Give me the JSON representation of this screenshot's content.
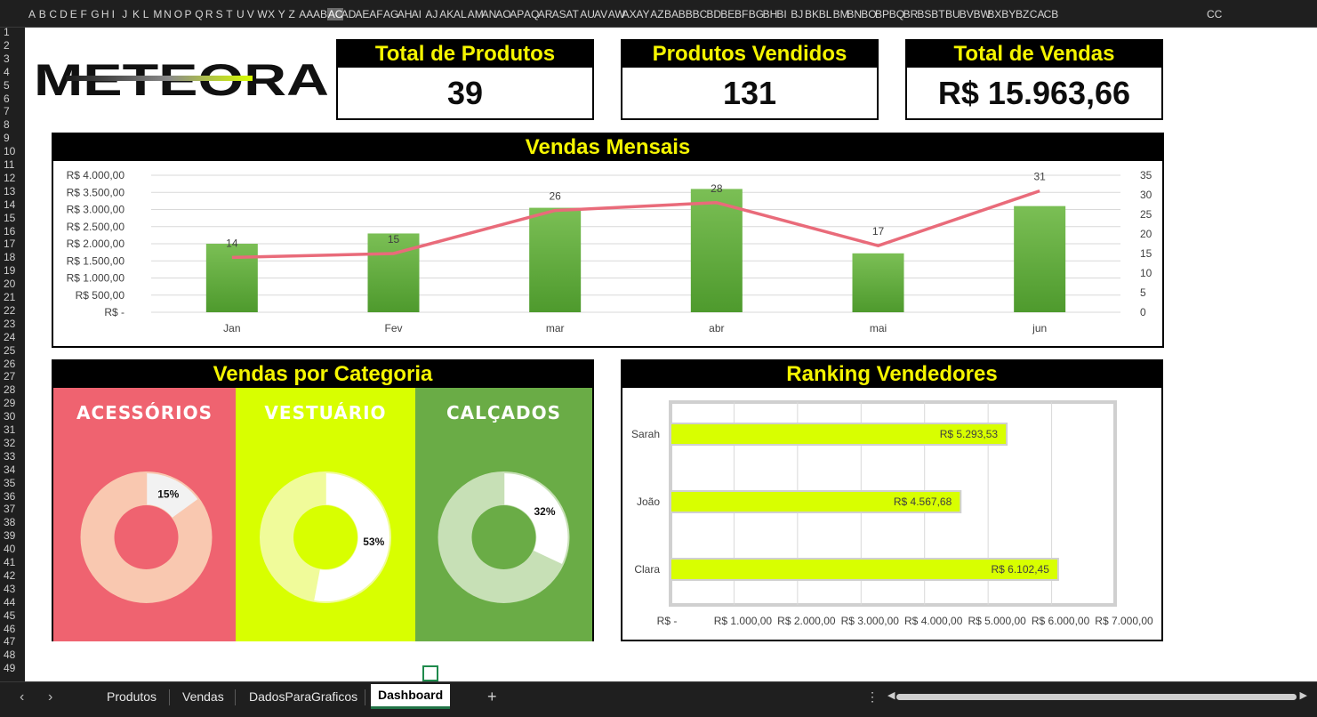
{
  "columns": [
    "A",
    "B",
    "C",
    "D",
    "E",
    "F",
    "G",
    "H",
    "I",
    "J",
    "K",
    "L",
    "M",
    "N",
    "O",
    "P",
    "Q",
    "R",
    "S",
    "T",
    "U",
    "V",
    "W",
    "X",
    "Y",
    "Z",
    "AA",
    "AB",
    "AC",
    "AD",
    "AE",
    "AF",
    "AG",
    "AH",
    "AI",
    "AJ",
    "AK",
    "AL",
    "AM",
    "AN",
    "AO",
    "AP",
    "AQ",
    "AR",
    "AS",
    "AT",
    "AU",
    "AV",
    "AW",
    "AX",
    "AY",
    "AZ",
    "BA",
    "BB",
    "BC",
    "BD",
    "BE",
    "BF",
    "BG",
    "BH",
    "BI",
    "BJ",
    "BK",
    "BL",
    "BM",
    "BN",
    "BO",
    "BP",
    "BQ",
    "BR",
    "BS",
    "BT",
    "BU",
    "BV",
    "BW",
    "BX",
    "BY",
    "BZ",
    "CA",
    "CB",
    "CC"
  ],
  "selected_column": "AC",
  "rows": [
    "1",
    "2",
    "3",
    "4",
    "5",
    "6",
    "7",
    "8",
    "9",
    "10",
    "11",
    "12",
    "13",
    "14",
    "15",
    "16",
    "17",
    "18",
    "19",
    "20",
    "21",
    "22",
    "23",
    "24",
    "25",
    "26",
    "27",
    "28",
    "29",
    "30",
    "31",
    "32",
    "33",
    "34",
    "35",
    "36",
    "37",
    "38",
    "39",
    "40",
    "41",
    "42",
    "43",
    "44",
    "45",
    "46",
    "47",
    "48",
    "49"
  ],
  "logo_text": "METEORA",
  "kpis": [
    {
      "title": "Total de Produtos",
      "value": "39"
    },
    {
      "title": "Produtos Vendidos",
      "value": "131"
    },
    {
      "title": "Total de Vendas",
      "value": "R$ 15.963,66"
    }
  ],
  "monthly": {
    "title": "Vendas Mensais"
  },
  "category": {
    "title": "Vendas por Categoria",
    "items": [
      {
        "label": "ACESSÓRIOS",
        "pct_label": "15%",
        "pct": 0.15,
        "bg": "#ef6370",
        "ring": "#f9c8b0",
        "slice": "#f2f2f2",
        "hole": "#ef6370"
      },
      {
        "label": "VESTUÁRIO",
        "pct_label": "53%",
        "pct": 0.53,
        "bg": "#d8ff00",
        "ring": "#f0fb9a",
        "slice": "#ffffff",
        "hole": "#d8ff00"
      },
      {
        "label": "CALÇADOS",
        "pct_label": "32%",
        "pct": 0.32,
        "bg": "#6aac46",
        "ring": "#c7e0b6",
        "slice": "#ffffff",
        "hole": "#6aac46"
      }
    ]
  },
  "ranking": {
    "title": "Ranking Vendedores"
  },
  "chart_data": [
    {
      "type": "bar",
      "title": "Vendas Mensais",
      "categories": [
        "Jan",
        "Fev",
        "mar",
        "abr",
        "mai",
        "jun"
      ],
      "series": [
        {
          "type": "bar",
          "axis": "left",
          "values": [
            2000,
            2300,
            3050,
            3600,
            1720,
            3100
          ],
          "color": "#5a9e38"
        },
        {
          "type": "line",
          "axis": "right",
          "values": [
            14,
            15,
            26,
            28,
            17,
            31
          ],
          "labels": [
            "14",
            "15",
            "26",
            "28",
            "17",
            "31"
          ],
          "color": "#e96b7a"
        }
      ],
      "y_left_ticks": [
        "R$ -",
        "R$ 500,00",
        "R$ 1.000,00",
        "R$ 1.500,00",
        "R$ 2.000,00",
        "R$ 2.500,00",
        "R$ 3.000,00",
        "R$ 3.500,00",
        "R$ 4.000,00"
      ],
      "ylim_left": [
        0,
        4000
      ],
      "y_right_ticks": [
        "0",
        "5",
        "10",
        "15",
        "20",
        "25",
        "30",
        "35"
      ],
      "ylim_right": [
        0,
        35
      ],
      "grid": true
    },
    {
      "type": "pie",
      "title": "Vendas por Categoria",
      "categories": [
        "ACESSÓRIOS",
        "VESTUÁRIO",
        "CALÇADOS"
      ],
      "values": [
        15,
        53,
        32
      ]
    },
    {
      "type": "bar",
      "orientation": "horizontal",
      "title": "Ranking Vendedores",
      "categories": [
        "Sarah",
        "João",
        "Clara"
      ],
      "values": [
        5293.53,
        4567.68,
        6102.45
      ],
      "labels": [
        "R$ 5.293,53",
        "R$ 4.567,68",
        "R$ 6.102,45"
      ],
      "x_ticks": [
        "R$ -",
        "R$ 1.000,00",
        "R$ 2.000,00",
        "R$ 3.000,00",
        "R$ 4.000,00",
        "R$ 5.000,00",
        "R$ 6.000,00",
        "R$ 7.000,00"
      ],
      "xlim": [
        0,
        7000
      ],
      "bar_color": "#d8ff00",
      "grid": true
    }
  ],
  "tabs": [
    {
      "label": "Produtos",
      "active": false
    },
    {
      "label": "Vendas",
      "active": false
    },
    {
      "label": "DadosParaGraficos",
      "active": false
    },
    {
      "label": "Dashboard",
      "active": true
    }
  ],
  "tabbar": {
    "add_label": "+",
    "more_label": "⋮",
    "prev_label": "‹",
    "next_label": "›"
  }
}
